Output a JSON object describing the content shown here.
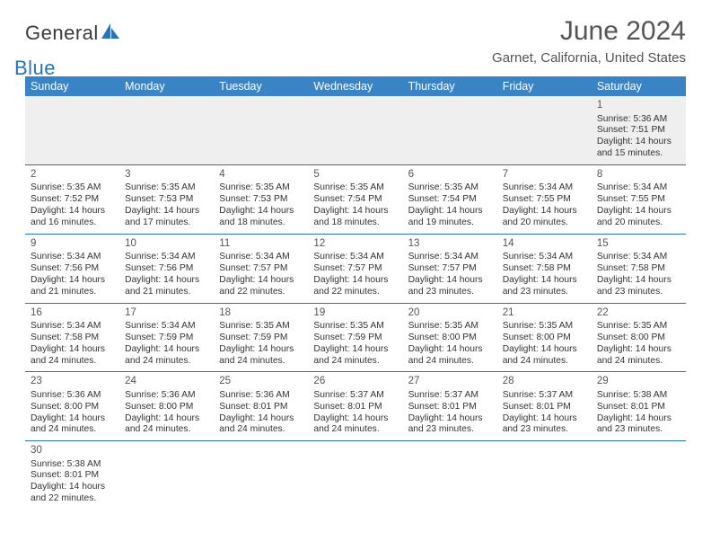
{
  "logo": {
    "general": "General",
    "blue": "Blue"
  },
  "title": "June 2024",
  "location": "Garnet, California, United States",
  "colors": {
    "header_bg": "#3a84c5",
    "header_text": "#ffffff",
    "border": "#2a73b8",
    "title_text": "#555555",
    "body_text": "#333333",
    "logo_blue": "#2a73b8",
    "empty_bg": "#efefef"
  },
  "fonts": {
    "title_size": 30,
    "location_size": 15,
    "dayname_size": 12.5,
    "cell_size": 10.5
  },
  "daynames": [
    "Sunday",
    "Monday",
    "Tuesday",
    "Wednesday",
    "Thursday",
    "Friday",
    "Saturday"
  ],
  "weeks": [
    [
      null,
      null,
      null,
      null,
      null,
      null,
      {
        "d": "1",
        "sr": "Sunrise: 5:36 AM",
        "ss": "Sunset: 7:51 PM",
        "dl1": "Daylight: 14 hours",
        "dl2": "and 15 minutes."
      }
    ],
    [
      {
        "d": "2",
        "sr": "Sunrise: 5:35 AM",
        "ss": "Sunset: 7:52 PM",
        "dl1": "Daylight: 14 hours",
        "dl2": "and 16 minutes."
      },
      {
        "d": "3",
        "sr": "Sunrise: 5:35 AM",
        "ss": "Sunset: 7:53 PM",
        "dl1": "Daylight: 14 hours",
        "dl2": "and 17 minutes."
      },
      {
        "d": "4",
        "sr": "Sunrise: 5:35 AM",
        "ss": "Sunset: 7:53 PM",
        "dl1": "Daylight: 14 hours",
        "dl2": "and 18 minutes."
      },
      {
        "d": "5",
        "sr": "Sunrise: 5:35 AM",
        "ss": "Sunset: 7:54 PM",
        "dl1": "Daylight: 14 hours",
        "dl2": "and 18 minutes."
      },
      {
        "d": "6",
        "sr": "Sunrise: 5:35 AM",
        "ss": "Sunset: 7:54 PM",
        "dl1": "Daylight: 14 hours",
        "dl2": "and 19 minutes."
      },
      {
        "d": "7",
        "sr": "Sunrise: 5:34 AM",
        "ss": "Sunset: 7:55 PM",
        "dl1": "Daylight: 14 hours",
        "dl2": "and 20 minutes."
      },
      {
        "d": "8",
        "sr": "Sunrise: 5:34 AM",
        "ss": "Sunset: 7:55 PM",
        "dl1": "Daylight: 14 hours",
        "dl2": "and 20 minutes."
      }
    ],
    [
      {
        "d": "9",
        "sr": "Sunrise: 5:34 AM",
        "ss": "Sunset: 7:56 PM",
        "dl1": "Daylight: 14 hours",
        "dl2": "and 21 minutes."
      },
      {
        "d": "10",
        "sr": "Sunrise: 5:34 AM",
        "ss": "Sunset: 7:56 PM",
        "dl1": "Daylight: 14 hours",
        "dl2": "and 21 minutes."
      },
      {
        "d": "11",
        "sr": "Sunrise: 5:34 AM",
        "ss": "Sunset: 7:57 PM",
        "dl1": "Daylight: 14 hours",
        "dl2": "and 22 minutes."
      },
      {
        "d": "12",
        "sr": "Sunrise: 5:34 AM",
        "ss": "Sunset: 7:57 PM",
        "dl1": "Daylight: 14 hours",
        "dl2": "and 22 minutes."
      },
      {
        "d": "13",
        "sr": "Sunrise: 5:34 AM",
        "ss": "Sunset: 7:57 PM",
        "dl1": "Daylight: 14 hours",
        "dl2": "and 23 minutes."
      },
      {
        "d": "14",
        "sr": "Sunrise: 5:34 AM",
        "ss": "Sunset: 7:58 PM",
        "dl1": "Daylight: 14 hours",
        "dl2": "and 23 minutes."
      },
      {
        "d": "15",
        "sr": "Sunrise: 5:34 AM",
        "ss": "Sunset: 7:58 PM",
        "dl1": "Daylight: 14 hours",
        "dl2": "and 23 minutes."
      }
    ],
    [
      {
        "d": "16",
        "sr": "Sunrise: 5:34 AM",
        "ss": "Sunset: 7:58 PM",
        "dl1": "Daylight: 14 hours",
        "dl2": "and 24 minutes."
      },
      {
        "d": "17",
        "sr": "Sunrise: 5:34 AM",
        "ss": "Sunset: 7:59 PM",
        "dl1": "Daylight: 14 hours",
        "dl2": "and 24 minutes."
      },
      {
        "d": "18",
        "sr": "Sunrise: 5:35 AM",
        "ss": "Sunset: 7:59 PM",
        "dl1": "Daylight: 14 hours",
        "dl2": "and 24 minutes."
      },
      {
        "d": "19",
        "sr": "Sunrise: 5:35 AM",
        "ss": "Sunset: 7:59 PM",
        "dl1": "Daylight: 14 hours",
        "dl2": "and 24 minutes."
      },
      {
        "d": "20",
        "sr": "Sunrise: 5:35 AM",
        "ss": "Sunset: 8:00 PM",
        "dl1": "Daylight: 14 hours",
        "dl2": "and 24 minutes."
      },
      {
        "d": "21",
        "sr": "Sunrise: 5:35 AM",
        "ss": "Sunset: 8:00 PM",
        "dl1": "Daylight: 14 hours",
        "dl2": "and 24 minutes."
      },
      {
        "d": "22",
        "sr": "Sunrise: 5:35 AM",
        "ss": "Sunset: 8:00 PM",
        "dl1": "Daylight: 14 hours",
        "dl2": "and 24 minutes."
      }
    ],
    [
      {
        "d": "23",
        "sr": "Sunrise: 5:36 AM",
        "ss": "Sunset: 8:00 PM",
        "dl1": "Daylight: 14 hours",
        "dl2": "and 24 minutes."
      },
      {
        "d": "24",
        "sr": "Sunrise: 5:36 AM",
        "ss": "Sunset: 8:00 PM",
        "dl1": "Daylight: 14 hours",
        "dl2": "and 24 minutes."
      },
      {
        "d": "25",
        "sr": "Sunrise: 5:36 AM",
        "ss": "Sunset: 8:01 PM",
        "dl1": "Daylight: 14 hours",
        "dl2": "and 24 minutes."
      },
      {
        "d": "26",
        "sr": "Sunrise: 5:37 AM",
        "ss": "Sunset: 8:01 PM",
        "dl1": "Daylight: 14 hours",
        "dl2": "and 24 minutes."
      },
      {
        "d": "27",
        "sr": "Sunrise: 5:37 AM",
        "ss": "Sunset: 8:01 PM",
        "dl1": "Daylight: 14 hours",
        "dl2": "and 23 minutes."
      },
      {
        "d": "28",
        "sr": "Sunrise: 5:37 AM",
        "ss": "Sunset: 8:01 PM",
        "dl1": "Daylight: 14 hours",
        "dl2": "and 23 minutes."
      },
      {
        "d": "29",
        "sr": "Sunrise: 5:38 AM",
        "ss": "Sunset: 8:01 PM",
        "dl1": "Daylight: 14 hours",
        "dl2": "and 23 minutes."
      }
    ],
    [
      {
        "d": "30",
        "sr": "Sunrise: 5:38 AM",
        "ss": "Sunset: 8:01 PM",
        "dl1": "Daylight: 14 hours",
        "dl2": "and 22 minutes."
      },
      null,
      null,
      null,
      null,
      null,
      null
    ]
  ]
}
